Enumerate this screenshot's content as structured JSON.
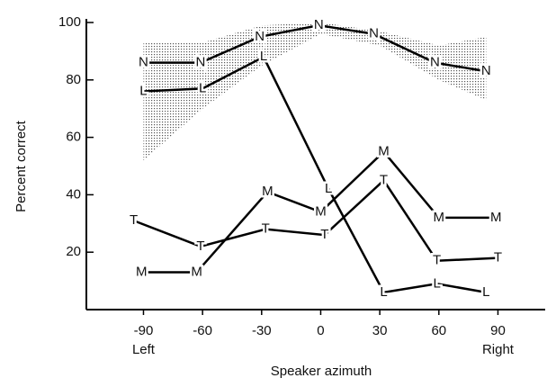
{
  "chart_data": {
    "type": "line",
    "xlabel": "Speaker azimuth",
    "ylabel": "Percent correct",
    "xlim": [
      -119,
      114
    ],
    "ylim": [
      0,
      100
    ],
    "xticks": [
      -90,
      -60,
      -30,
      0,
      30,
      60,
      90
    ],
    "yticks": [
      20,
      40,
      60,
      80,
      100
    ],
    "annotations": [
      {
        "text": "Left",
        "x": -90
      },
      {
        "text": "Right",
        "x": 90
      }
    ],
    "band": {
      "x": [
        -90,
        -60,
        -30,
        0,
        30,
        60,
        84
      ],
      "upper": [
        93,
        93,
        99,
        100,
        97,
        92,
        95
      ],
      "lower": [
        52,
        70,
        85,
        96,
        92,
        80,
        73
      ]
    },
    "series": [
      {
        "name": "N",
        "color": "#000000",
        "x": [
          -90,
          -61,
          -31,
          -1,
          27,
          58,
          84
        ],
        "values": [
          86,
          86,
          95,
          99,
          96,
          86,
          83
        ]
      },
      {
        "name": "L",
        "color": "#000000",
        "x": [
          -90,
          -60,
          -29,
          4,
          32,
          59,
          84
        ],
        "values": [
          76,
          77,
          88,
          42,
          6,
          9,
          6
        ]
      },
      {
        "name": "M",
        "color": "#000000",
        "x": [
          -91,
          -63,
          -27,
          0,
          32,
          60,
          89
        ],
        "values": [
          13,
          13,
          41,
          34,
          55,
          32,
          32
        ]
      },
      {
        "name": "T",
        "color": "#000000",
        "x": [
          -95,
          -61,
          -28,
          2,
          32,
          59,
          90
        ],
        "values": [
          31,
          22,
          28,
          26,
          45,
          17,
          18
        ]
      }
    ]
  }
}
